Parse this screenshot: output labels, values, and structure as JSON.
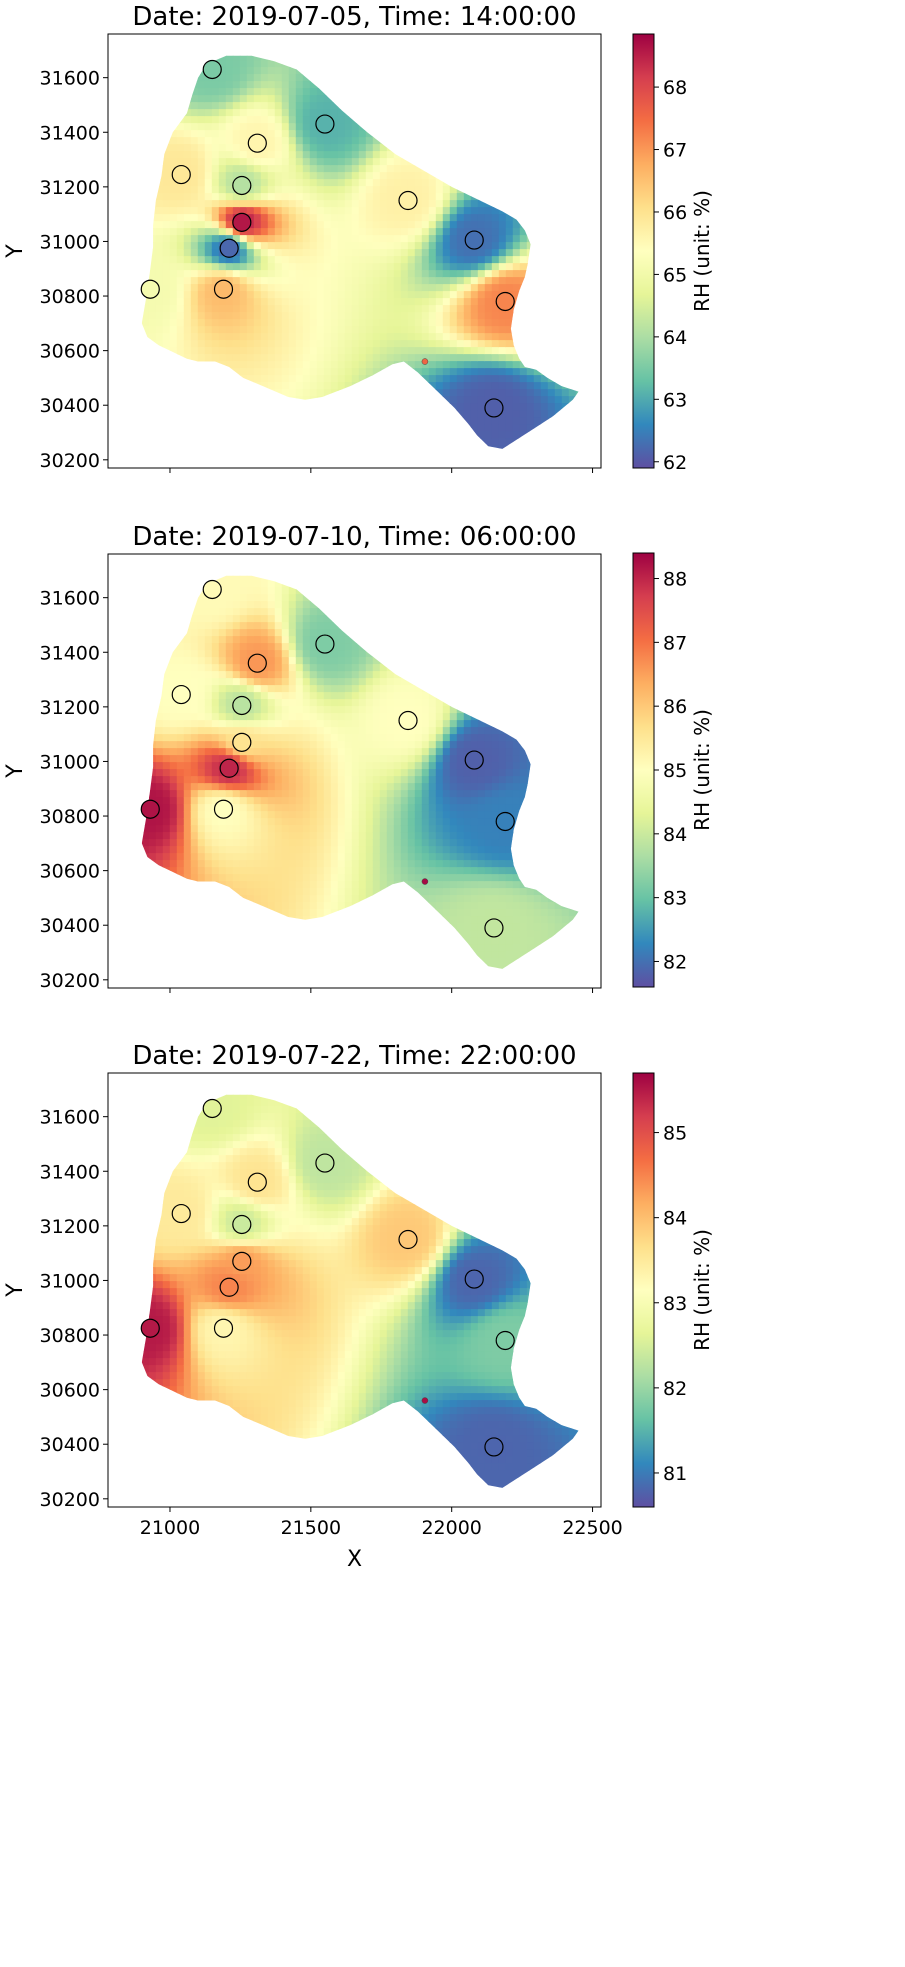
{
  "figure": {
    "xlabel": "X",
    "colorbar_label": "RH (unit: %)",
    "map_style": {
      "palette": "Spectral_r",
      "palette_colors": [
        "#5e4fa2",
        "#3288bd",
        "#66c2a5",
        "#abdda4",
        "#e6f598",
        "#ffffbf",
        "#fee08b",
        "#fdae61",
        "#f46d43",
        "#d53e4f",
        "#9e0142"
      ]
    }
  },
  "chart_data": [
    {
      "type": "scatter",
      "title": "Date: 2019-07-05, Time: 14:00:00",
      "xlabel": "",
      "ylabel": "Y",
      "xlim": [
        20780,
        22530
      ],
      "ylim": [
        30170,
        31760
      ],
      "xticks": [
        21000,
        21500,
        22000,
        22500
      ],
      "yticks": [
        30200,
        30400,
        30600,
        30800,
        31000,
        31200,
        31400,
        31600
      ],
      "show_x_tick_labels": false,
      "grid": false,
      "colorbar": {
        "label": "RH (unit: %)",
        "range": [
          61.9,
          68.85
        ],
        "ticks": [
          62,
          63,
          64,
          65,
          66,
          67,
          68
        ]
      },
      "stations": [
        {
          "x": 21150,
          "y": 31630,
          "value": 63.5
        },
        {
          "x": 21550,
          "y": 31430,
          "value": 63.1
        },
        {
          "x": 21310,
          "y": 31360,
          "value": 65.6
        },
        {
          "x": 21040,
          "y": 31245,
          "value": 65.9
        },
        {
          "x": 21255,
          "y": 31205,
          "value": 64.1
        },
        {
          "x": 21845,
          "y": 31150,
          "value": 65.7
        },
        {
          "x": 21255,
          "y": 31070,
          "value": 68.6
        },
        {
          "x": 22080,
          "y": 31005,
          "value": 62.3
        },
        {
          "x": 21210,
          "y": 30975,
          "value": 62.2
        },
        {
          "x": 20930,
          "y": 30825,
          "value": 65.1
        },
        {
          "x": 21190,
          "y": 30825,
          "value": 66.6
        },
        {
          "x": 22190,
          "y": 30780,
          "value": 67.2
        },
        {
          "x": 22150,
          "y": 30390,
          "value": 62.1
        }
      ],
      "marker": {
        "x": 21905,
        "y": 30560,
        "value": 67.6
      }
    },
    {
      "type": "scatter",
      "title": "Date: 2019-07-10, Time: 06:00:00",
      "xlabel": "",
      "ylabel": "Y",
      "xlim": [
        20780,
        22530
      ],
      "ylim": [
        30170,
        31760
      ],
      "xticks": [
        21000,
        21500,
        22000,
        22500
      ],
      "yticks": [
        30200,
        30400,
        30600,
        30800,
        31000,
        31200,
        31400,
        31600
      ],
      "show_x_tick_labels": false,
      "grid": false,
      "colorbar": {
        "label": "RH (unit: %)",
        "range": [
          81.6,
          88.4
        ],
        "ticks": [
          82,
          83,
          84,
          85,
          86,
          87,
          88
        ]
      },
      "stations": [
        {
          "x": 21150,
          "y": 31630,
          "value": 85.1
        },
        {
          "x": 21550,
          "y": 31430,
          "value": 83.2
        },
        {
          "x": 21310,
          "y": 31360,
          "value": 86.6
        },
        {
          "x": 21040,
          "y": 31245,
          "value": 85.0
        },
        {
          "x": 21255,
          "y": 31205,
          "value": 83.8
        },
        {
          "x": 21845,
          "y": 31150,
          "value": 85.0
        },
        {
          "x": 21255,
          "y": 31070,
          "value": 85.6
        },
        {
          "x": 22080,
          "y": 31005,
          "value": 81.8
        },
        {
          "x": 21210,
          "y": 30975,
          "value": 88.0
        },
        {
          "x": 20930,
          "y": 30825,
          "value": 88.2
        },
        {
          "x": 21190,
          "y": 30825,
          "value": 85.0
        },
        {
          "x": 22190,
          "y": 30780,
          "value": 82.2
        },
        {
          "x": 22150,
          "y": 30390,
          "value": 83.9
        }
      ],
      "marker": {
        "x": 21905,
        "y": 30560,
        "value": 88.3
      }
    },
    {
      "type": "scatter",
      "title": "Date: 2019-07-22, Time: 22:00:00",
      "xlabel": "X",
      "ylabel": "Y",
      "xlim": [
        20780,
        22530
      ],
      "ylim": [
        30170,
        31760
      ],
      "xticks": [
        21000,
        21500,
        22000,
        22500
      ],
      "yticks": [
        30200,
        30400,
        30600,
        30800,
        31000,
        31200,
        31400,
        31600
      ],
      "show_x_tick_labels": true,
      "grid": false,
      "colorbar": {
        "label": "RH (unit: %)",
        "range": [
          80.6,
          85.7
        ],
        "ticks": [
          81,
          82,
          83,
          84,
          85
        ]
      },
      "stations": [
        {
          "x": 21150,
          "y": 31630,
          "value": 82.6
        },
        {
          "x": 21550,
          "y": 31430,
          "value": 82.3
        },
        {
          "x": 21310,
          "y": 31360,
          "value": 83.6
        },
        {
          "x": 21040,
          "y": 31245,
          "value": 83.5
        },
        {
          "x": 21255,
          "y": 31205,
          "value": 82.4
        },
        {
          "x": 21845,
          "y": 31150,
          "value": 83.9
        },
        {
          "x": 21255,
          "y": 31070,
          "value": 84.3
        },
        {
          "x": 22080,
          "y": 31005,
          "value": 80.8
        },
        {
          "x": 21210,
          "y": 30975,
          "value": 84.5
        },
        {
          "x": 20930,
          "y": 30825,
          "value": 85.5
        },
        {
          "x": 21190,
          "y": 30825,
          "value": 83.3
        },
        {
          "x": 22190,
          "y": 30780,
          "value": 81.8
        },
        {
          "x": 22150,
          "y": 30390,
          "value": 80.8
        }
      ],
      "marker": {
        "x": 21905,
        "y": 30560,
        "value": 85.6
      }
    }
  ]
}
